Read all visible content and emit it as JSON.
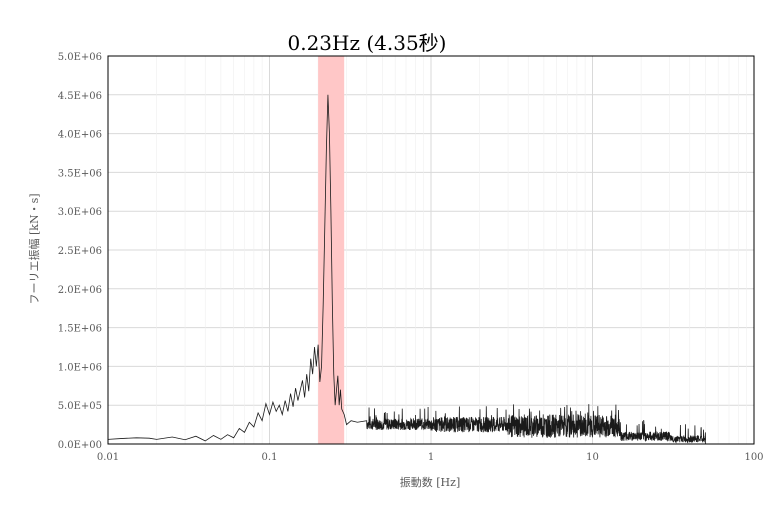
{
  "chart_data": {
    "type": "line",
    "title": "0.23Hz (4.35秒)",
    "xlabel": "振動数 [Hz]",
    "ylabel": "フーリエ振幅 [kN・s]",
    "x_scale": "log",
    "xlim": [
      0.01,
      100
    ],
    "ylim": [
      0,
      5000000
    ],
    "x_ticks": [
      0.01,
      0.1,
      1,
      10,
      100
    ],
    "x_tick_labels": [
      "0.01",
      "0.1",
      "1",
      "10",
      "100"
    ],
    "y_ticks": [
      0,
      500000,
      1000000,
      1500000,
      2000000,
      2500000,
      3000000,
      3500000,
      4000000,
      4500000,
      5000000
    ],
    "y_tick_labels": [
      "0.0E+00",
      "5.0E+05",
      "1.0E+06",
      "1.5E+06",
      "2.0E+06",
      "2.5E+06",
      "3.0E+06",
      "3.5E+06",
      "4.0E+06",
      "4.5E+06",
      "5.0E+06"
    ],
    "grid": true,
    "highlight_band": {
      "x_start": 0.2,
      "x_end": 0.29,
      "color": "#ffc7c7"
    },
    "line_color": "#1a1a1a",
    "series": [
      {
        "x": [
          0.01,
          0.012,
          0.015,
          0.018,
          0.02,
          0.025,
          0.03,
          0.035,
          0.04,
          0.045,
          0.05,
          0.055,
          0.06,
          0.065,
          0.07,
          0.075,
          0.08,
          0.085,
          0.09,
          0.095,
          0.1,
          0.105,
          0.11,
          0.115,
          0.12,
          0.125,
          0.13,
          0.135,
          0.14,
          0.145,
          0.15,
          0.16,
          0.165,
          0.17,
          0.175,
          0.18,
          0.185,
          0.19,
          0.195,
          0.2,
          0.205,
          0.21,
          0.215,
          0.22,
          0.225,
          0.23,
          0.235,
          0.24,
          0.245,
          0.25,
          0.255,
          0.26,
          0.265,
          0.27,
          0.275,
          0.28,
          0.29,
          0.3,
          0.32,
          0.35,
          0.4
        ],
        "values": [
          60000,
          70000,
          80000,
          75000,
          60000,
          90000,
          55000,
          100000,
          40000,
          110000,
          60000,
          120000,
          80000,
          200000,
          150000,
          280000,
          220000,
          400000,
          300000,
          520000,
          380000,
          540000,
          420000,
          500000,
          380000,
          560000,
          420000,
          650000,
          480000,
          720000,
          560000,
          820000,
          600000,
          900000,
          680000,
          1100000,
          900000,
          1250000,
          1000000,
          1280000,
          800000,
          1000000,
          1800000,
          2800000,
          3800000,
          4500000,
          4000000,
          3000000,
          1800000,
          900000,
          500000,
          700000,
          880000,
          500000,
          700000,
          450000,
          380000,
          250000,
          300000,
          280000,
          300000
        ]
      }
    ]
  }
}
